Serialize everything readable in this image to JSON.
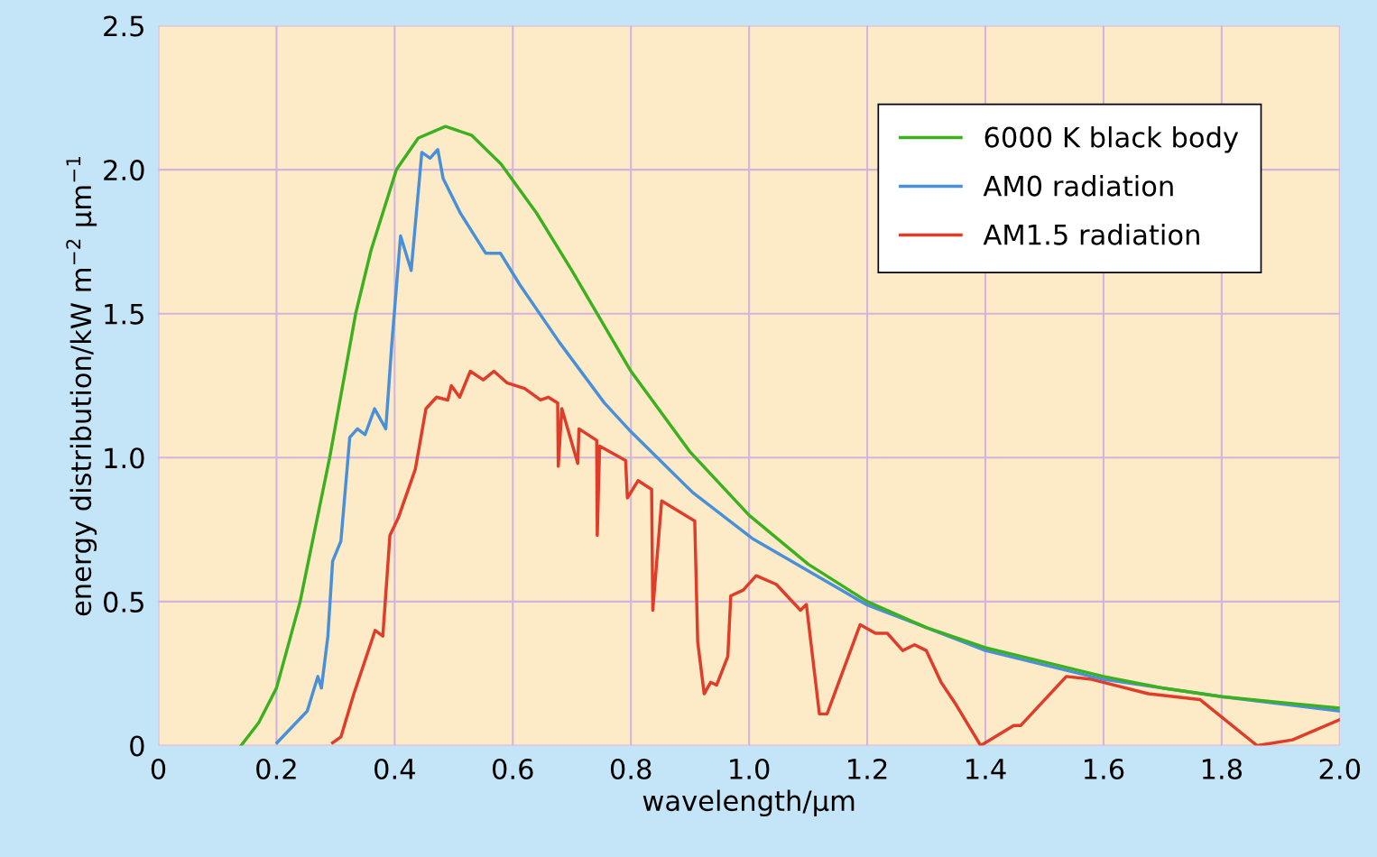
{
  "chart_data": {
    "type": "line",
    "xlabel": "wavelength/μm",
    "ylabel": "energy distribution/kW m$^{−2}$ μm$^{−1}$",
    "xlim": [
      0,
      2.0
    ],
    "ylim": [
      0,
      2.5
    ],
    "xticks": [
      0,
      0.2,
      0.4,
      0.6,
      0.8,
      {
        "value": 1,
        "label": "1.0"
      },
      1.2,
      1.4,
      1.6,
      1.8,
      {
        "value": 2,
        "label": "2.0"
      }
    ],
    "yticks": [
      0,
      0.5,
      {
        "value": 1,
        "label": "1.0"
      },
      1.5,
      {
        "value": 2,
        "label": "2.0"
      },
      2.5
    ],
    "grid": true,
    "legend": "top right",
    "marker": "none",
    "line_style": "solid",
    "series": [
      {
        "name": "6000 K black body",
        "color": "#3cb01e",
        "x": [
          0.14,
          0.17,
          0.2,
          0.24,
          0.29,
          0.334,
          0.36,
          0.403,
          0.44,
          0.486,
          0.53,
          0.58,
          0.64,
          0.7,
          0.8,
          0.9,
          1.0,
          1.1,
          1.2,
          1.3,
          1.4,
          1.5,
          1.6,
          1.7,
          1.8,
          1.9,
          2.0
        ],
        "values": [
          0,
          0.08,
          0.2,
          0.5,
          1.0,
          1.5,
          1.72,
          2.0,
          2.11,
          2.15,
          2.12,
          2.02,
          1.85,
          1.65,
          1.3,
          1.02,
          0.8,
          0.63,
          0.5,
          0.41,
          0.34,
          0.29,
          0.24,
          0.2,
          0.17,
          0.15,
          0.13
        ]
      },
      {
        "name": "AM0 radiation",
        "color": "#4a90d9",
        "x": [
          0.201,
          0.252,
          0.27,
          0.276,
          0.287,
          0.295,
          0.309,
          0.324,
          0.337,
          0.35,
          0.366,
          0.385,
          0.395,
          0.41,
          0.428,
          0.446,
          0.46,
          0.473,
          0.482,
          0.511,
          0.554,
          0.579,
          0.612,
          0.679,
          0.755,
          0.8,
          0.904,
          1.005,
          1.198,
          1.35,
          1.4,
          1.6,
          1.8,
          2.0
        ],
        "values": [
          0.01,
          0.12,
          0.24,
          0.2,
          0.38,
          0.64,
          0.71,
          1.07,
          1.1,
          1.08,
          1.17,
          1.1,
          1.39,
          1.77,
          1.65,
          2.06,
          2.04,
          2.07,
          1.97,
          1.85,
          1.71,
          1.71,
          1.6,
          1.4,
          1.19,
          1.09,
          0.88,
          0.72,
          0.49,
          0.37,
          0.33,
          0.23,
          0.17,
          0.12
        ]
      },
      {
        "name": "AM1.5 radiation",
        "color": "#e03c2a",
        "x": [
          0.295,
          0.309,
          0.331,
          0.367,
          0.38,
          0.392,
          0.406,
          0.435,
          0.453,
          0.471,
          0.49,
          0.496,
          0.51,
          0.528,
          0.55,
          0.568,
          0.59,
          0.62,
          0.647,
          0.66,
          0.676,
          0.677,
          0.683,
          0.71,
          0.712,
          0.742,
          0.743,
          0.747,
          0.756,
          0.791,
          0.794,
          0.812,
          0.835,
          0.837,
          0.852,
          0.908,
          0.913,
          0.924,
          0.935,
          0.945,
          0.964,
          0.969,
          0.99,
          1.012,
          1.046,
          1.087,
          1.097,
          1.119,
          1.132,
          1.188,
          1.214,
          1.234,
          1.26,
          1.28,
          1.3,
          1.325,
          1.351,
          1.392,
          1.448,
          1.46,
          1.537,
          1.58,
          1.676,
          1.763,
          1.86,
          1.92,
          2.0
        ],
        "values": [
          0.01,
          0.03,
          0.18,
          0.4,
          0.38,
          0.73,
          0.79,
          0.96,
          1.17,
          1.21,
          1.2,
          1.25,
          1.21,
          1.3,
          1.27,
          1.3,
          1.26,
          1.24,
          1.2,
          1.21,
          1.19,
          0.97,
          1.17,
          0.98,
          1.1,
          1.06,
          0.73,
          1.04,
          1.03,
          0.99,
          0.86,
          0.92,
          0.89,
          0.47,
          0.85,
          0.78,
          0.36,
          0.18,
          0.22,
          0.21,
          0.31,
          0.52,
          0.54,
          0.59,
          0.56,
          0.47,
          0.49,
          0.11,
          0.11,
          0.42,
          0.39,
          0.39,
          0.33,
          0.35,
          0.33,
          0.22,
          0.14,
          0.0,
          0.07,
          0.07,
          0.24,
          0.23,
          0.18,
          0.16,
          0.0,
          0.02,
          0.09
        ]
      }
    ]
  }
}
